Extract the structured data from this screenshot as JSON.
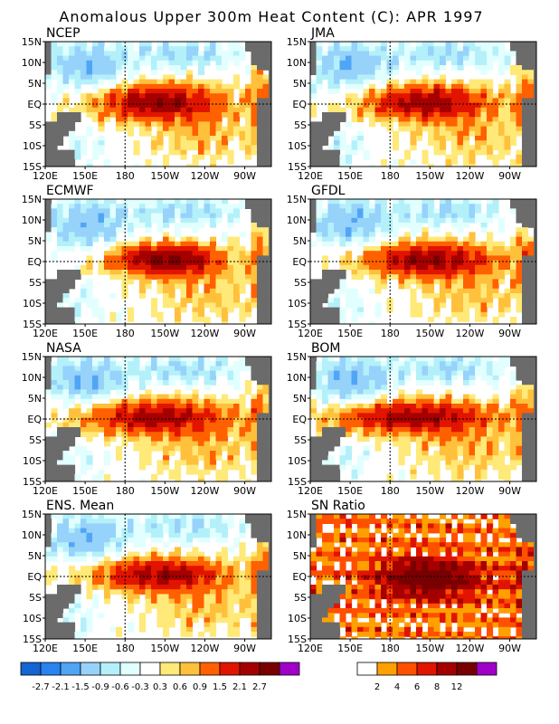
{
  "title": "Anomalous Upper 300m Heat Content (C): APR 1997",
  "chart_data": [
    {
      "type": "heatmap",
      "title": "NCEP",
      "field": "anomaly"
    },
    {
      "type": "heatmap",
      "title": "JMA",
      "field": "anomaly"
    },
    {
      "type": "heatmap",
      "title": "ECMWF",
      "field": "anomaly"
    },
    {
      "type": "heatmap",
      "title": "GFDL",
      "field": "anomaly"
    },
    {
      "type": "heatmap",
      "title": "NASA",
      "field": "anomaly"
    },
    {
      "type": "heatmap",
      "title": "BOM",
      "field": "anomaly"
    },
    {
      "type": "heatmap",
      "title": "ENS. Mean",
      "field": "anomaly"
    },
    {
      "type": "heatmap",
      "title": "SN Ratio",
      "field": "snr"
    }
  ],
  "axes": {
    "lat_labels": [
      "15N",
      "10N",
      "5N",
      "EQ",
      "5S",
      "10S",
      "15S"
    ],
    "lat_values": [
      15,
      10,
      5,
      0,
      -5,
      -10,
      -15
    ],
    "lon_labels": [
      "120E",
      "150E",
      "180",
      "150W",
      "120W",
      "90W"
    ],
    "lon_values": [
      120,
      150,
      180,
      210,
      240,
      270
    ],
    "lon_range": [
      120,
      290
    ],
    "lat_range": [
      -15,
      15
    ]
  },
  "anomaly_scale": {
    "labels": [
      "-2.7",
      "-2.1",
      "-1.5",
      "-0.9",
      "-0.6",
      "-0.3",
      "0.3",
      "0.6",
      "0.9",
      "1.5",
      "2.1",
      "2.7"
    ],
    "colors": [
      "#1464d2",
      "#2882f0",
      "#50a5f5",
      "#96d2fa",
      "#b4f0fa",
      "#e1ffff",
      "#ffffff",
      "#ffe978",
      "#ffc03c",
      "#ff6000",
      "#e11400",
      "#a50000",
      "#780000",
      "#a000c8"
    ]
  },
  "snr_scale": {
    "labels": [
      "2",
      "4",
      "6",
      "8",
      "12"
    ],
    "colors": [
      "#ffffff",
      "#ffa000",
      "#ff5000",
      "#e11400",
      "#a50000",
      "#780000",
      "#a000c8"
    ]
  },
  "colors": {
    "land": "#6b6b6b",
    "grid": "#000000"
  }
}
